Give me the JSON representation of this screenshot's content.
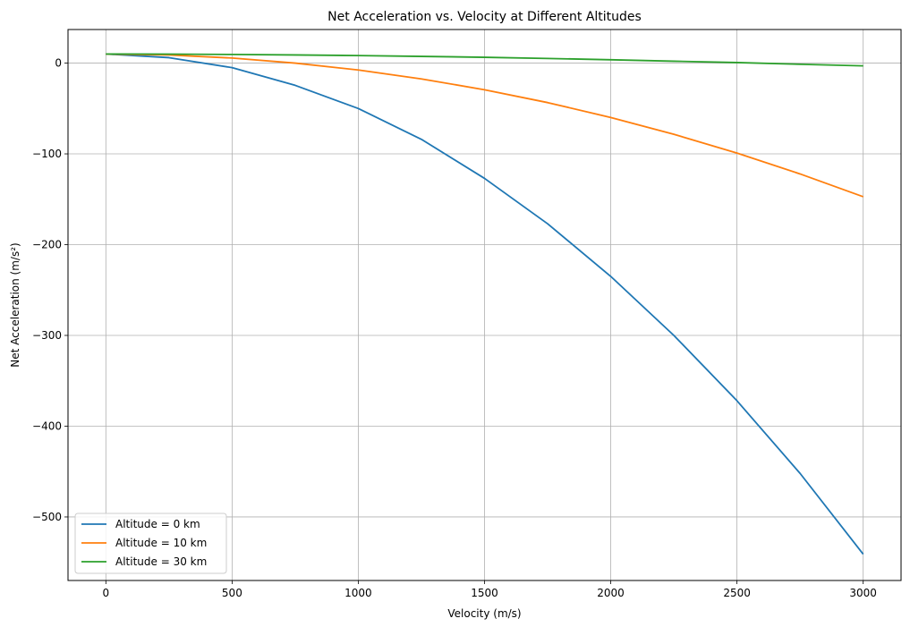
{
  "chart_data": {
    "type": "line",
    "title": "Net Acceleration vs. Velocity at Different Altitudes",
    "xlabel": "Velocity (m/s)",
    "ylabel": "Net Acceleration (m/s²)",
    "xlim": [
      -150,
      3150
    ],
    "ylim": [
      -570,
      37
    ],
    "xticks": [
      0,
      500,
      1000,
      1500,
      2000,
      2500,
      3000
    ],
    "yticks": [
      0,
      -100,
      -200,
      -300,
      -400,
      -500
    ],
    "xtick_labels": [
      "0",
      "500",
      "1000",
      "1500",
      "2000",
      "2500",
      "3000"
    ],
    "ytick_labels": [
      "0",
      "−100",
      "−200",
      "−300",
      "−400",
      "−500"
    ],
    "grid": true,
    "legend_position": "lower-left",
    "series": [
      {
        "name": "Altitude = 0 km",
        "color": "#1f77b4",
        "x": [
          0,
          250,
          500,
          750,
          1000,
          1250,
          1500,
          1750,
          2000,
          2250,
          2500,
          2750,
          3000
        ],
        "y": [
          10.0,
          6.0,
          -5.0,
          -24.5,
          -50.0,
          -84.0,
          -127.0,
          -177.0,
          -235.0,
          -300.0,
          -372.0,
          -452.0,
          -541.0
        ]
      },
      {
        "name": "Altitude = 10 km",
        "color": "#ff7f0e",
        "x": [
          0,
          250,
          500,
          750,
          1000,
          1250,
          1500,
          1750,
          2000,
          2250,
          2500,
          2750,
          3000
        ],
        "y": [
          10.0,
          8.9,
          5.6,
          0.0,
          -7.6,
          -17.4,
          -29.4,
          -43.5,
          -59.9,
          -78.4,
          -99.1,
          -122.1,
          -147.2
        ]
      },
      {
        "name": "Altitude = 30 km",
        "color": "#2ca02c",
        "x": [
          0,
          250,
          500,
          750,
          1000,
          1250,
          1500,
          1750,
          2000,
          2250,
          2500,
          2750,
          3000
        ],
        "y": [
          10.0,
          9.9,
          9.5,
          9.0,
          8.3,
          7.4,
          6.4,
          5.1,
          3.7,
          2.1,
          0.6,
          -1.3,
          -3.0
        ]
      }
    ]
  }
}
